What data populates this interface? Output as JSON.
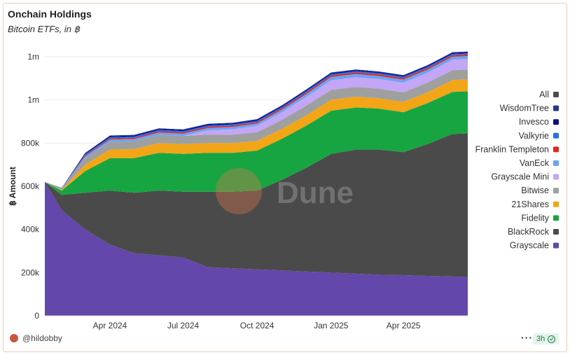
{
  "header": {
    "title": "Onchain Holdings",
    "subtitle": "Bitcoin ETFs, in ฿"
  },
  "watermark": "Dune",
  "footer": {
    "user": "@hildobby",
    "freshness": "3h"
  },
  "colors": {
    "All": "#4d4d4d",
    "WisdomTree": "#1e3a8a",
    "Invesco": "#0b0b8c",
    "Valkyrie": "#2b6fe0",
    "Franklin Templeton": "#e0271f",
    "VanEck": "#6aa4f5",
    "Grayscale Mini": "#c3a6f5",
    "Bitwise": "#9ea0a0",
    "21Shares": "#f2a516",
    "Fidelity": "#17a542",
    "BlackRock": "#4a4a4a",
    "Grayscale": "#6447aa"
  },
  "chart_data": {
    "type": "area",
    "stacked": true,
    "ylabel": "฿ Amount",
    "ylim": [
      0,
      1200000
    ],
    "yticks": [
      {
        "value": 0,
        "label": "0"
      },
      {
        "value": 200000,
        "label": "200k"
      },
      {
        "value": 400000,
        "label": "400k"
      },
      {
        "value": 600000,
        "label": "600k"
      },
      {
        "value": 800000,
        "label": "800k"
      },
      {
        "value": 1000000,
        "label": "1m"
      },
      {
        "value": 1200000,
        "label": "1m"
      }
    ],
    "xticks": [
      "Apr 2024",
      "Jul 2024",
      "Oct 2024",
      "Jan 2025",
      "Apr 2025"
    ],
    "grid": true,
    "legend_position": "right",
    "legend": [
      "All",
      "WisdomTree",
      "Invesco",
      "Valkyrie",
      "Franklin Templeton",
      "VanEck",
      "Grayscale Mini",
      "Bitwise",
      "21Shares",
      "Fidelity",
      "BlackRock",
      "Grayscale"
    ],
    "x": [
      "2024-01-11",
      "2024-02-01",
      "2024-03-01",
      "2024-04-01",
      "2024-05-01",
      "2024-06-01",
      "2024-07-01",
      "2024-08-01",
      "2024-09-01",
      "2024-10-01",
      "2024-11-01",
      "2024-12-01",
      "2025-01-01",
      "2025-02-01",
      "2025-03-01",
      "2025-04-01",
      "2025-05-01",
      "2025-06-01",
      "2025-06-20"
    ],
    "series": [
      {
        "name": "Grayscale",
        "values": [
          620000,
          490000,
          400000,
          330000,
          290000,
          280000,
          270000,
          225000,
          220000,
          215000,
          210000,
          205000,
          200000,
          195000,
          190000,
          188000,
          185000,
          182000,
          180000
        ]
      },
      {
        "name": "BlackRock",
        "values": [
          0,
          70000,
          170000,
          250000,
          280000,
          300000,
          305000,
          350000,
          355000,
          365000,
          420000,
          480000,
          550000,
          575000,
          580000,
          570000,
          610000,
          660000,
          665000
        ]
      },
      {
        "name": "Fidelity",
        "values": [
          0,
          20000,
          100000,
          150000,
          160000,
          175000,
          175000,
          180000,
          180000,
          185000,
          190000,
          195000,
          200000,
          195000,
          190000,
          185000,
          190000,
          195000,
          195000
        ]
      },
      {
        "name": "21Shares",
        "values": [
          0,
          4000,
          30000,
          40000,
          42000,
          45000,
          45000,
          45000,
          45000,
          45000,
          46000,
          48000,
          50000,
          50000,
          48000,
          48000,
          50000,
          55000,
          55000
        ]
      },
      {
        "name": "Bitwise",
        "values": [
          0,
          3000,
          30000,
          36000,
          37000,
          38000,
          38000,
          39000,
          39000,
          40000,
          42000,
          45000,
          46000,
          45000,
          44000,
          44000,
          45000,
          46000,
          46000
        ]
      },
      {
        "name": "Grayscale Mini",
        "values": [
          0,
          0,
          0,
          0,
          0,
          0,
          0,
          20000,
          25000,
          30000,
          35000,
          40000,
          45000,
          45000,
          45000,
          45000,
          46000,
          48000,
          48000
        ]
      },
      {
        "name": "VanEck",
        "values": [
          0,
          2000,
          8000,
          10000,
          10000,
          11000,
          11000,
          11000,
          11000,
          11000,
          12000,
          14000,
          15000,
          15000,
          14000,
          14000,
          14000,
          14000,
          14000
        ]
      },
      {
        "name": "Franklin Templeton",
        "values": [
          0,
          500,
          4000,
          5000,
          5000,
          5500,
          5500,
          5500,
          5500,
          6000,
          6500,
          7000,
          7000,
          7000,
          7000,
          7000,
          7000,
          7000,
          7000
        ]
      },
      {
        "name": "Valkyrie",
        "values": [
          0,
          1000,
          5000,
          6000,
          6000,
          6000,
          6000,
          6000,
          6000,
          6000,
          6000,
          6000,
          6000,
          6000,
          6000,
          6000,
          6000,
          6000,
          6000
        ]
      },
      {
        "name": "Invesco",
        "values": [
          0,
          1000,
          4000,
          5000,
          5000,
          5000,
          5000,
          5000,
          5000,
          5000,
          5000,
          5000,
          5000,
          5000,
          5000,
          5000,
          5000,
          5000,
          5000
        ]
      },
      {
        "name": "WisdomTree",
        "values": [
          0,
          1000,
          3000,
          3000,
          3000,
          3000,
          3000,
          3000,
          3000,
          3000,
          3000,
          3000,
          3000,
          3000,
          3000,
          3000,
          3000,
          3000,
          3000
        ]
      }
    ]
  }
}
